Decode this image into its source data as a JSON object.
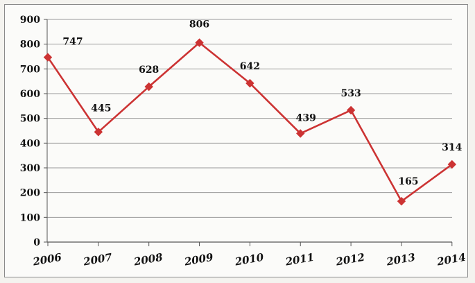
{
  "chart_data": {
    "type": "line",
    "categories": [
      "2006",
      "2007",
      "2008",
      "2009",
      "2010",
      "2011",
      "2012",
      "2013",
      "2014"
    ],
    "series": [
      {
        "values": [
          747,
          445,
          628,
          806,
          642,
          439,
          533,
          165,
          314
        ],
        "color": "#cc3333",
        "marker": "diamond"
      }
    ],
    "data_labels": [
      "747",
      "445",
      "628",
      "806",
      "642",
      "439",
      "533",
      "165",
      "314"
    ],
    "y_ticks": [
      "0",
      "100",
      "200",
      "300",
      "400",
      "500",
      "600",
      "700",
      "800",
      "900"
    ],
    "ylim": [
      0,
      900
    ],
    "grid": true,
    "legend": "none",
    "title": "",
    "xlabel": "",
    "ylabel": ""
  }
}
